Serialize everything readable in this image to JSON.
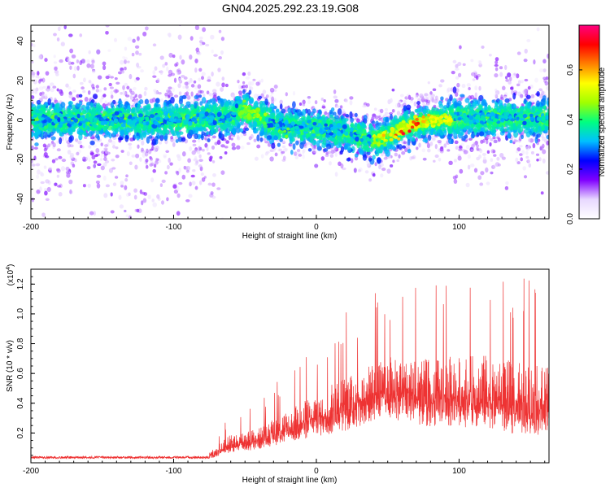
{
  "figure": {
    "title": "GN04.2025.292.23.19.G08"
  },
  "chart_data": [
    {
      "type": "heatmap",
      "name": "spectrogram",
      "xlabel": "Height of straight line (km)",
      "ylabel": "Frequency (Hz)",
      "xlim": [
        -200,
        163
      ],
      "ylim": [
        -50,
        48
      ],
      "xticks": [
        -200,
        -100,
        0,
        100
      ],
      "xtick_labels": [
        "-200",
        "-100",
        "0",
        "100"
      ],
      "yticks": [
        -40,
        -20,
        0,
        20,
        40
      ],
      "ytick_labels": [
        "-40",
        "-20",
        "0",
        "20",
        "40"
      ],
      "colorbar": {
        "label": "Normalized spectral amplitude",
        "range": [
          0.0,
          0.78
        ],
        "ticks": [
          0.0,
          0.2,
          0.4,
          0.6
        ],
        "tick_labels": [
          "0.0",
          "0.2",
          "0.4",
          "0.6"
        ],
        "colors": [
          "#ffffff",
          "#e8d8ff",
          "#8000ff",
          "#0000ff",
          "#00c0ff",
          "#00ff80",
          "#a0ff00",
          "#ffff00",
          "#ff8000",
          "#ff0000",
          "#ff0080"
        ]
      },
      "ridge": {
        "x": [
          -200,
          -150,
          -100,
          -60,
          -50,
          -40,
          -30,
          -20,
          0,
          20,
          40,
          50,
          60,
          70,
          80,
          90,
          100,
          130,
          163
        ],
        "center_hz": [
          0,
          0,
          0,
          2,
          5,
          2,
          -2,
          -4,
          -4,
          -6,
          -10,
          -8,
          -4,
          -2,
          0,
          0,
          1,
          1,
          1
        ]
      },
      "peaks": [
        {
          "x": 60,
          "y": -6,
          "amp": 0.75
        },
        {
          "x": 68,
          "y": -2,
          "amp": 0.72
        },
        {
          "x": 75,
          "y": 0,
          "amp": 0.65
        },
        {
          "x": 55,
          "y": -8,
          "amp": 0.6
        },
        {
          "x": 82,
          "y": -1,
          "amp": 0.55
        },
        {
          "x": -45,
          "y": 3,
          "amp": 0.5
        },
        {
          "x": -25,
          "y": -6,
          "amp": 0.45
        },
        {
          "x": 45,
          "y": -12,
          "amp": 0.45
        }
      ]
    },
    {
      "type": "line",
      "name": "snr",
      "xlabel": "Height of straight line (km)",
      "ylabel": "SNR (10 * v/v)",
      "multiplier_label": "(x10",
      "multiplier_exp": "4",
      "multiplier_close": ")",
      "xlim": [
        -200,
        163
      ],
      "ylim": [
        0,
        13000
      ],
      "xticks": [
        -200,
        -100,
        0,
        100
      ],
      "xtick_labels": [
        "-200",
        "-100",
        "0",
        "100"
      ],
      "yticks": [
        2000,
        4000,
        6000,
        8000,
        10000,
        12000
      ],
      "ytick_labels": [
        "0.2",
        "0.4",
        "0.6",
        "0.8",
        "1.0",
        "1.2"
      ],
      "color": "#ee3333",
      "envelope": {
        "x": [
          -200,
          -80,
          -72,
          -60,
          -40,
          -20,
          0,
          20,
          40,
          60,
          80,
          100,
          120,
          140,
          163
        ],
        "upper": [
          400,
          400,
          1200,
          2500,
          3000,
          4500,
          6000,
          7500,
          8500,
          9500,
          9000,
          9500,
          9500,
          9000,
          8500
        ],
        "lower": [
          150,
          150,
          300,
          600,
          800,
          1200,
          1500,
          1800,
          2500,
          2500,
          2000,
          2000,
          2000,
          1500,
          1500
        ]
      }
    }
  ]
}
